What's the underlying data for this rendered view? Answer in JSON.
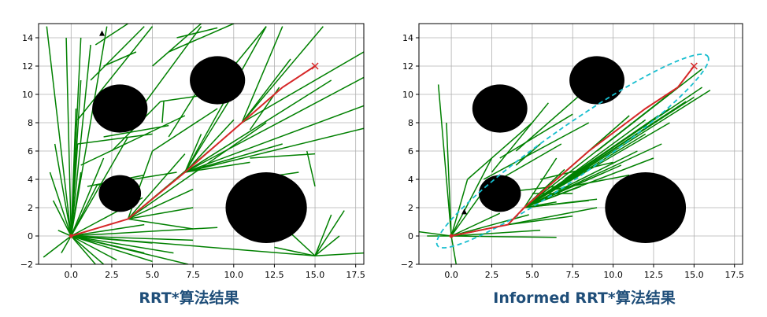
{
  "chart_data": [
    {
      "type": "line",
      "title": "",
      "caption": "RRT*算法结果",
      "xlim": [
        -2,
        18
      ],
      "ylim": [
        -2,
        15
      ],
      "xticks": [
        0,
        2.5,
        5,
        7.5,
        10,
        12.5,
        15,
        17.5
      ],
      "xtick_labels": [
        "0.0",
        "2.5",
        "5.0",
        "7.5",
        "10.0",
        "12.5",
        "15.0",
        "17.5"
      ],
      "yticks": [
        -2,
        0,
        2,
        4,
        6,
        8,
        10,
        12,
        14
      ],
      "ytick_labels": [
        "−2",
        "0",
        "2",
        "4",
        "6",
        "8",
        "10",
        "12",
        "14"
      ],
      "grid": true,
      "colors": {
        "tree": "#008000",
        "path": "#d62728",
        "obstacle": "#000000",
        "goal_marker": "#d62728"
      },
      "start": [
        0,
        0
      ],
      "goal": [
        15,
        12
      ],
      "marker": [
        1.9,
        14.3
      ],
      "obstacles": [
        {
          "cx": 3,
          "cy": 9,
          "r": 1.7
        },
        {
          "cx": 9,
          "cy": 11,
          "r": 1.7
        },
        {
          "cx": 3,
          "cy": 3,
          "r": 1.3
        },
        {
          "cx": 12,
          "cy": 2,
          "r": 2.5
        }
      ],
      "path": [
        [
          0,
          0
        ],
        [
          3.5,
          1.2
        ],
        [
          7,
          4.5
        ],
        [
          10.5,
          8
        ],
        [
          13,
          10.5
        ],
        [
          15,
          12
        ]
      ],
      "tree_edges": [
        [
          0,
          0,
          -1.7,
          -1.5
        ],
        [
          0,
          0,
          -1.3,
          4.5
        ],
        [
          0,
          0,
          -1,
          6.5
        ],
        [
          0,
          0,
          -1.5,
          14.8
        ],
        [
          0,
          0,
          -0.3,
          14
        ],
        [
          0,
          0,
          0.6,
          14
        ],
        [
          0,
          0,
          0.3,
          9
        ],
        [
          0,
          0,
          1.2,
          13.5
        ],
        [
          0,
          0,
          2.2,
          14.8
        ],
        [
          0,
          0,
          0.6,
          11
        ],
        [
          0,
          0,
          0.6,
          4.5
        ],
        [
          0,
          0,
          -0.6,
          -1.2
        ],
        [
          0,
          0,
          -1.1,
          2.5
        ],
        [
          0,
          0,
          1.5,
          -2
        ],
        [
          0,
          0,
          2.8,
          -1.7
        ],
        [
          0,
          0,
          5,
          -1.8
        ],
        [
          0,
          0,
          6.3,
          -1.2
        ],
        [
          0,
          0,
          7.2,
          -2
        ],
        [
          0,
          0,
          7.5,
          -0.3
        ],
        [
          0,
          0,
          9,
          0.6
        ],
        [
          0,
          0,
          4.5,
          0.8
        ],
        [
          0,
          0,
          2,
          5.5
        ],
        [
          0,
          0,
          3.5,
          7
        ],
        [
          0,
          0,
          0.7,
          1.5
        ],
        [
          0,
          0,
          -0.8,
          0.4
        ],
        [
          0,
          0,
          1.6,
          3.6
        ],
        [
          0,
          0,
          0.4,
          6.5
        ],
        [
          0,
          0,
          4.4,
          2.7
        ],
        [
          0.4,
          8.2,
          5,
          14.8
        ],
        [
          1.2,
          11,
          4.5,
          14.8
        ],
        [
          1.5,
          13.5,
          3.5,
          15
        ],
        [
          2,
          12,
          4,
          13
        ],
        [
          2.5,
          6,
          5.5,
          9.5
        ],
        [
          2,
          7,
          6,
          7.8
        ],
        [
          0.4,
          6.5,
          5,
          7.2
        ],
        [
          0.6,
          5,
          7,
          8.5
        ],
        [
          1,
          3.5,
          4.5,
          4.3
        ],
        [
          1.6,
          3.6,
          6.5,
          4.5
        ],
        [
          5,
          6,
          9,
          9
        ],
        [
          4.6,
          9.5,
          8,
          14.8
        ],
        [
          5.6,
          8,
          5.7,
          9.5
        ],
        [
          5.5,
          9.5,
          8.5,
          10
        ],
        [
          6,
          7,
          9,
          12.5
        ],
        [
          5,
          12,
          8,
          15
        ],
        [
          6,
          13,
          10,
          15
        ],
        [
          6.5,
          14,
          9,
          14.7
        ],
        [
          3.5,
          1.2,
          7.5,
          2
        ],
        [
          3.5,
          1.2,
          7.5,
          0.5
        ],
        [
          3.5,
          1.2,
          7.5,
          3.3
        ],
        [
          3.5,
          1.2,
          9,
          6.5
        ],
        [
          3.5,
          1.2,
          5,
          6
        ],
        [
          3.5,
          1.2,
          7,
          5.8
        ],
        [
          3.5,
          1.2,
          12,
          8
        ],
        [
          7,
          4.5,
          10,
          8.2
        ],
        [
          7,
          4.5,
          11,
          5.2
        ],
        [
          7,
          4.5,
          13,
          6.5
        ],
        [
          7,
          4.5,
          16,
          11
        ],
        [
          7,
          4.5,
          18,
          9.2
        ],
        [
          7,
          4.5,
          18,
          11.2
        ],
        [
          7,
          4.5,
          12,
          14.8
        ],
        [
          7,
          4.5,
          18,
          7.6
        ],
        [
          7,
          4.5,
          8,
          7.2
        ],
        [
          7,
          4.5,
          10.5,
          11
        ],
        [
          10.5,
          8,
          15.5,
          14.8
        ],
        [
          10.5,
          8,
          18,
          13
        ],
        [
          10.5,
          8,
          13.5,
          12.5
        ],
        [
          10.5,
          8,
          13,
          14.8
        ],
        [
          10,
          12,
          12,
          14.8
        ],
        [
          11,
          7.5,
          12.8,
          10.5
        ],
        [
          11,
          5.5,
          15,
          5.8
        ],
        [
          11,
          4,
          14,
          4.5
        ],
        [
          14.5,
          6,
          15,
          3.5
        ],
        [
          15,
          -1.4,
          18,
          -1.2
        ],
        [
          15,
          -1.4,
          16,
          1.5
        ],
        [
          15,
          -1.4,
          16.5,
          0
        ],
        [
          15,
          -1.4,
          13.5,
          0.2
        ],
        [
          15,
          -1.4,
          12.5,
          -0.8
        ],
        [
          15,
          -1.4,
          16.8,
          1.8
        ],
        [
          0,
          0,
          5,
          -0.5
        ],
        [
          0,
          0,
          4.5,
          -1.2
        ],
        [
          0,
          0,
          15,
          -1.4
        ],
        [
          0,
          0,
          2,
          -2
        ]
      ]
    },
    {
      "type": "line",
      "title": "",
      "caption": "Informed RRT*算法结果",
      "xlim": [
        -2,
        18
      ],
      "ylim": [
        -2,
        15
      ],
      "xticks": [
        0,
        2.5,
        5,
        7.5,
        10,
        12.5,
        15,
        17.5
      ],
      "xtick_labels": [
        "0.0",
        "2.5",
        "5.0",
        "7.5",
        "10.0",
        "12.5",
        "15.0",
        "17.5"
      ],
      "yticks": [
        -2,
        0,
        2,
        4,
        6,
        8,
        10,
        12,
        14
      ],
      "ytick_labels": [
        "−2",
        "0",
        "2",
        "4",
        "6",
        "8",
        "10",
        "12",
        "14"
      ],
      "grid": true,
      "colors": {
        "tree": "#008000",
        "path": "#d62728",
        "obstacle": "#000000",
        "ellipse": "#17becf"
      },
      "start": [
        0,
        0
      ],
      "goal": [
        15,
        12
      ],
      "marker": [
        0.8,
        1.7
      ],
      "obstacles": [
        {
          "cx": 3,
          "cy": 9,
          "r": 1.7
        },
        {
          "cx": 9,
          "cy": 11,
          "r": 1.7
        },
        {
          "cx": 3,
          "cy": 3,
          "r": 1.3
        },
        {
          "cx": 12,
          "cy": 2,
          "r": 2.5
        }
      ],
      "ellipse": {
        "cx": 7.5,
        "cy": 6,
        "rx": 10.2,
        "ry": 1.75
      },
      "path": [
        [
          0,
          0
        ],
        [
          3.5,
          0.8
        ],
        [
          4.5,
          2
        ],
        [
          8.5,
          6
        ],
        [
          12,
          9
        ],
        [
          14,
          10.5
        ],
        [
          15,
          12
        ]
      ],
      "tree_edges": [
        [
          0,
          0,
          -0.8,
          10.7
        ],
        [
          0,
          0,
          -0.3,
          8
        ],
        [
          0,
          0,
          -2,
          0.3
        ],
        [
          0,
          0,
          -1.5,
          0
        ],
        [
          0,
          0,
          0.3,
          -2
        ],
        [
          0,
          0,
          1,
          4
        ],
        [
          0,
          0,
          2.5,
          5.5
        ],
        [
          0,
          0,
          6.5,
          -0.1
        ],
        [
          0,
          0,
          5.5,
          0.4
        ],
        [
          0,
          0,
          3,
          1.6
        ],
        [
          0,
          0,
          4.8,
          1.5
        ],
        [
          0,
          0,
          2,
          3.2
        ],
        [
          0,
          0,
          2.2,
          0.5
        ],
        [
          0,
          0,
          3.5,
          0.8
        ],
        [
          1,
          4,
          5,
          8
        ],
        [
          2,
          4,
          8.5,
          8
        ],
        [
          3,
          4,
          6.8,
          6.5
        ],
        [
          3,
          5.5,
          7.5,
          8.6
        ],
        [
          2.5,
          3,
          6.5,
          3.5
        ],
        [
          2.5,
          4.5,
          6,
          9.4
        ],
        [
          4,
          6,
          8,
          10
        ],
        [
          4,
          5,
          5.5,
          6.5
        ],
        [
          4.5,
          2,
          8.5,
          2.5
        ],
        [
          4.5,
          2,
          6.5,
          2.4
        ],
        [
          4.5,
          2,
          9,
          2.6
        ],
        [
          4.5,
          2,
          7,
          4.7
        ],
        [
          4.5,
          2,
          10.5,
          5
        ],
        [
          4.5,
          2,
          12.5,
          5.5
        ],
        [
          4.5,
          2,
          11,
          8.5
        ],
        [
          4.5,
          2,
          12,
          7.2
        ],
        [
          4.5,
          2,
          13.5,
          8
        ],
        [
          4.5,
          2,
          14,
          10.5
        ],
        [
          4.5,
          2,
          13.5,
          9
        ],
        [
          4.5,
          2,
          15.5,
          10.5
        ],
        [
          4.5,
          2,
          14.5,
          9.5
        ],
        [
          4.5,
          2,
          10,
          7.5
        ],
        [
          4.5,
          2,
          9,
          6.5
        ],
        [
          4.5,
          2,
          8,
          3.5
        ],
        [
          4.5,
          2,
          9.5,
          4.5
        ],
        [
          4.5,
          2,
          11.5,
          6
        ],
        [
          4.5,
          2,
          13,
          6.5
        ],
        [
          4.5,
          2,
          12.8,
          8.5
        ],
        [
          4.5,
          2,
          15,
          9.8
        ],
        [
          4.5,
          2,
          16,
          10.3
        ],
        [
          4.5,
          2,
          6.5,
          5.5
        ],
        [
          4.5,
          2,
          8.5,
          4.8
        ],
        [
          5.5,
          4,
          10,
          5.2
        ],
        [
          5,
          3,
          7.5,
          3
        ],
        [
          7,
          4,
          12,
          8.2
        ],
        [
          6,
          3.2,
          11,
          4.3
        ],
        [
          9,
          6,
          15.5,
          11.8
        ],
        [
          3.5,
          0.8,
          9,
          2
        ],
        [
          3.5,
          0.8,
          7.5,
          1.4
        ]
      ]
    }
  ]
}
